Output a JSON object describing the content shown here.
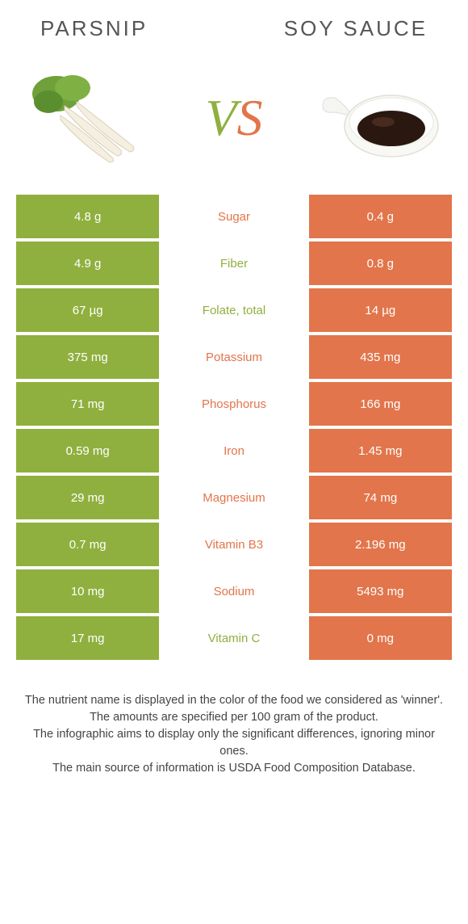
{
  "header": {
    "left_title": "PARSNIP",
    "right_title": "SOY SAUCE",
    "vs_v": "V",
    "vs_s": "S"
  },
  "colors": {
    "left": "#8fb03e",
    "right": "#e2754b",
    "row_gap": 4
  },
  "rows": [
    {
      "left": "4.8 g",
      "label": "Sugar",
      "right": "0.4 g",
      "winner": "right"
    },
    {
      "left": "4.9 g",
      "label": "Fiber",
      "right": "0.8 g",
      "winner": "left"
    },
    {
      "left": "67 µg",
      "label": "Folate, total",
      "right": "14 µg",
      "winner": "left"
    },
    {
      "left": "375 mg",
      "label": "Potassium",
      "right": "435 mg",
      "winner": "right"
    },
    {
      "left": "71 mg",
      "label": "Phosphorus",
      "right": "166 mg",
      "winner": "right"
    },
    {
      "left": "0.59 mg",
      "label": "Iron",
      "right": "1.45 mg",
      "winner": "right"
    },
    {
      "left": "29 mg",
      "label": "Magnesium",
      "right": "74 mg",
      "winner": "right"
    },
    {
      "left": "0.7 mg",
      "label": "Vitamin B3",
      "right": "2.196 mg",
      "winner": "right"
    },
    {
      "left": "10 mg",
      "label": "Sodium",
      "right": "5493 mg",
      "winner": "right"
    },
    {
      "left": "17 mg",
      "label": "Vitamin C",
      "right": "0 mg",
      "winner": "left"
    }
  ],
  "footer": {
    "line1": "The nutrient name is displayed in the color of the food we considered as 'winner'.",
    "line2": "The amounts are specified per 100 gram of the product.",
    "line3": "The infographic aims to display only the significant differences, ignoring minor ones.",
    "line4": "The main source of information is USDA Food Composition Database."
  }
}
